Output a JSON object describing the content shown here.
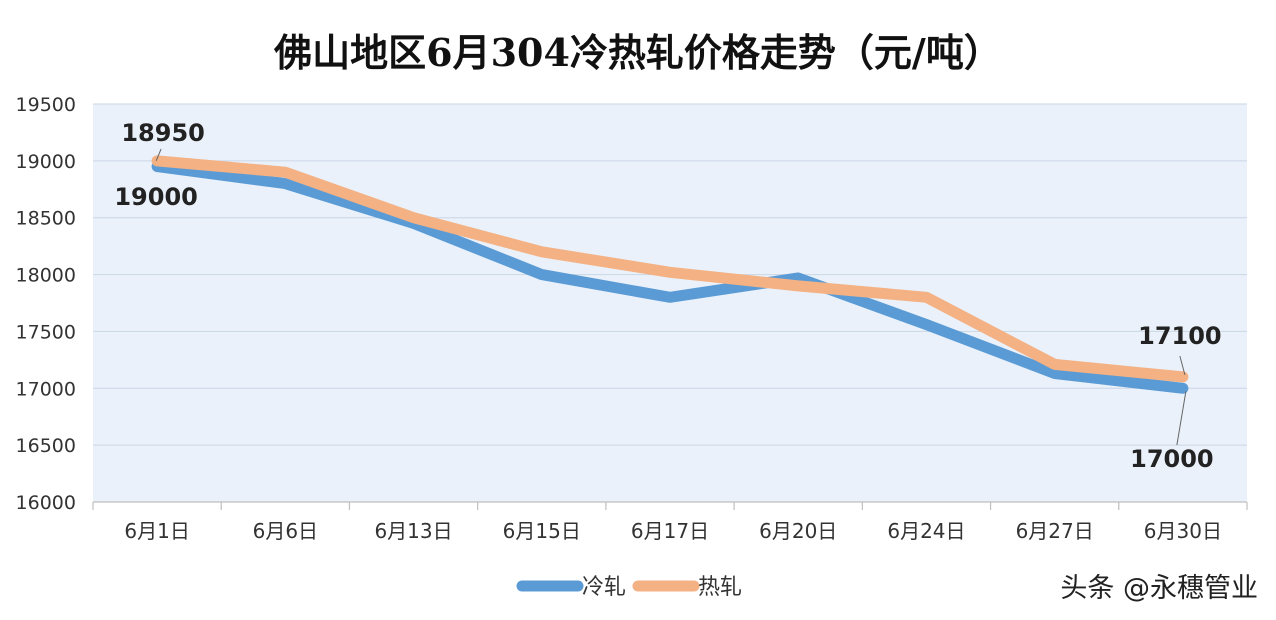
{
  "chart_data": {
    "type": "line",
    "title": "佛山地区6月304冷热轧价格走势（元/吨）",
    "categories": [
      "6月1日",
      "6月6日",
      "6月13日",
      "6月15日",
      "6月17日",
      "6月20日",
      "6月24日",
      "6月27日",
      "6月30日"
    ],
    "series": [
      {
        "name": "冷轧",
        "color": "#5b9bd5",
        "values": [
          18950,
          18800,
          18450,
          18000,
          17800,
          17970,
          17560,
          17130,
          17000
        ]
      },
      {
        "name": "热轧",
        "color": "#f4b183",
        "values": [
          19000,
          18900,
          18500,
          18200,
          18020,
          17900,
          17800,
          17210,
          17100
        ]
      }
    ],
    "ylim": [
      16000,
      19500
    ],
    "yticks": [
      16000,
      16500,
      17000,
      17500,
      18000,
      18500,
      19000,
      19500
    ],
    "grid": true,
    "legend": "bottom-center",
    "annotations": [
      {
        "text": "18950",
        "category": "6月1日",
        "series": "冷轧"
      },
      {
        "text": "19000",
        "category": "6月1日",
        "series": "热轧"
      },
      {
        "text": "17100",
        "category": "6月30日",
        "series": "热轧"
      },
      {
        "text": "17000",
        "category": "6月30日",
        "series": "冷轧"
      }
    ]
  },
  "watermark": "头条 @永穗管业"
}
